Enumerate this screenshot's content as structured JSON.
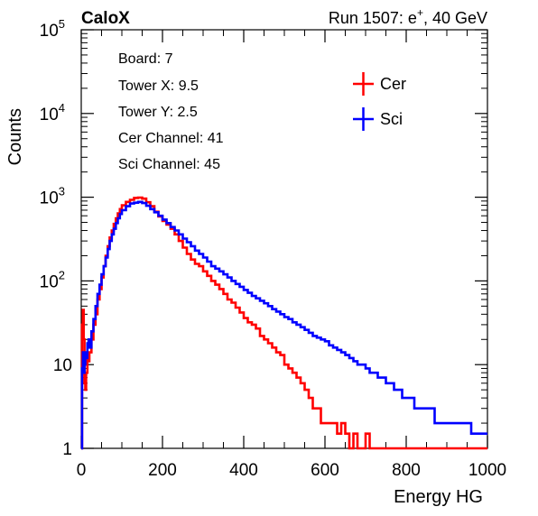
{
  "header": {
    "left": "CaloX",
    "right_prefix": "Run 1507: e",
    "right_sup": "+",
    "right_suffix": ", 40 GeV"
  },
  "info_box": {
    "lines": [
      "Board: 7",
      "Tower X: 9.5",
      "Tower Y: 2.5",
      "Cer Channel: 41",
      "Sci Channel: 45"
    ]
  },
  "legend": {
    "items": [
      {
        "label": "Cer",
        "color": "#ff0000"
      },
      {
        "label": "Sci",
        "color": "#0000ff"
      }
    ]
  },
  "chart_data": {
    "type": "line",
    "style": "step-histogram",
    "xlabel": "Energy HG",
    "ylabel": "Counts",
    "xlim": [
      0,
      1000
    ],
    "ylim": [
      1,
      100000
    ],
    "ylog": true,
    "x_ticks": [
      "0",
      "200",
      "400",
      "600",
      "800",
      "1000"
    ],
    "y_ticks": [
      {
        "base": "1",
        "exp": ""
      },
      {
        "base": "10",
        "exp": ""
      },
      {
        "base": "10",
        "exp": "2"
      },
      {
        "base": "10",
        "exp": "3"
      },
      {
        "base": "10",
        "exp": "4"
      },
      {
        "base": "10",
        "exp": "5"
      }
    ],
    "grid": false,
    "legend_position": "top-right",
    "series": [
      {
        "name": "Cer",
        "color": "#ff0000",
        "points": [
          [
            0,
            1
          ],
          [
            2,
            30
          ],
          [
            4,
            45
          ],
          [
            6,
            20
          ],
          [
            8,
            6
          ],
          [
            10,
            5
          ],
          [
            12,
            8
          ],
          [
            15,
            12
          ],
          [
            18,
            11
          ],
          [
            20,
            14
          ],
          [
            25,
            20
          ],
          [
            30,
            30
          ],
          [
            35,
            40
          ],
          [
            40,
            60
          ],
          [
            45,
            80
          ],
          [
            50,
            110
          ],
          [
            55,
            150
          ],
          [
            60,
            200
          ],
          [
            65,
            260
          ],
          [
            70,
            330
          ],
          [
            75,
            400
          ],
          [
            80,
            480
          ],
          [
            85,
            560
          ],
          [
            90,
            640
          ],
          [
            95,
            720
          ],
          [
            100,
            800
          ],
          [
            110,
            880
          ],
          [
            120,
            930
          ],
          [
            130,
            980
          ],
          [
            140,
            990
          ],
          [
            150,
            960
          ],
          [
            160,
            870
          ],
          [
            170,
            780
          ],
          [
            180,
            670
          ],
          [
            190,
            590
          ],
          [
            200,
            520
          ],
          [
            210,
            470
          ],
          [
            220,
            420
          ],
          [
            230,
            360
          ],
          [
            240,
            300
          ],
          [
            250,
            250
          ],
          [
            260,
            210
          ],
          [
            270,
            180
          ],
          [
            280,
            160
          ],
          [
            290,
            150
          ],
          [
            300,
            130
          ],
          [
            310,
            115
          ],
          [
            320,
            100
          ],
          [
            330,
            90
          ],
          [
            340,
            80
          ],
          [
            350,
            70
          ],
          [
            360,
            60
          ],
          [
            370,
            55
          ],
          [
            380,
            48
          ],
          [
            390,
            42
          ],
          [
            400,
            36
          ],
          [
            410,
            32
          ],
          [
            420,
            30
          ],
          [
            430,
            27
          ],
          [
            440,
            22
          ],
          [
            450,
            20
          ],
          [
            460,
            18
          ],
          [
            470,
            16
          ],
          [
            480,
            14
          ],
          [
            490,
            13
          ],
          [
            500,
            10
          ],
          [
            510,
            9
          ],
          [
            520,
            8
          ],
          [
            530,
            7
          ],
          [
            540,
            6
          ],
          [
            550,
            5
          ],
          [
            560,
            4
          ],
          [
            570,
            3
          ],
          [
            580,
            3
          ],
          [
            590,
            2
          ],
          [
            600,
            2
          ],
          [
            610,
            2
          ],
          [
            620,
            2
          ],
          [
            630,
            1.5
          ],
          [
            640,
            2
          ],
          [
            650,
            1.5
          ],
          [
            660,
            1
          ],
          [
            670,
            1.5
          ],
          [
            680,
            1
          ],
          [
            690,
            1
          ],
          [
            700,
            1.5
          ],
          [
            710,
            1
          ],
          [
            720,
            1
          ],
          [
            730,
            1
          ],
          [
            740,
            1
          ],
          [
            750,
            1
          ],
          [
            760,
            1
          ],
          [
            780,
            1
          ],
          [
            800,
            1
          ],
          [
            900,
            1
          ],
          [
            1000,
            1
          ]
        ]
      },
      {
        "name": "Sci",
        "color": "#0000ff",
        "points": [
          [
            0,
            1
          ],
          [
            2,
            9
          ],
          [
            4,
            14
          ],
          [
            6,
            8
          ],
          [
            8,
            10
          ],
          [
            10,
            14
          ],
          [
            12,
            12
          ],
          [
            15,
            18
          ],
          [
            18,
            20
          ],
          [
            20,
            16
          ],
          [
            25,
            25
          ],
          [
            30,
            35
          ],
          [
            35,
            50
          ],
          [
            40,
            70
          ],
          [
            45,
            90
          ],
          [
            50,
            120
          ],
          [
            55,
            150
          ],
          [
            60,
            190
          ],
          [
            65,
            240
          ],
          [
            70,
            300
          ],
          [
            75,
            360
          ],
          [
            80,
            420
          ],
          [
            85,
            490
          ],
          [
            90,
            560
          ],
          [
            95,
            630
          ],
          [
            100,
            700
          ],
          [
            110,
            780
          ],
          [
            120,
            840
          ],
          [
            130,
            860
          ],
          [
            140,
            880
          ],
          [
            150,
            850
          ],
          [
            160,
            790
          ],
          [
            170,
            720
          ],
          [
            180,
            660
          ],
          [
            190,
            600
          ],
          [
            200,
            540
          ],
          [
            210,
            490
          ],
          [
            220,
            440
          ],
          [
            230,
            400
          ],
          [
            240,
            360
          ],
          [
            250,
            320
          ],
          [
            260,
            290
          ],
          [
            270,
            260
          ],
          [
            280,
            230
          ],
          [
            290,
            210
          ],
          [
            300,
            190
          ],
          [
            310,
            170
          ],
          [
            320,
            150
          ],
          [
            330,
            140
          ],
          [
            340,
            130
          ],
          [
            350,
            120
          ],
          [
            360,
            110
          ],
          [
            370,
            100
          ],
          [
            380,
            92
          ],
          [
            390,
            85
          ],
          [
            400,
            78
          ],
          [
            410,
            72
          ],
          [
            420,
            66
          ],
          [
            430,
            62
          ],
          [
            440,
            58
          ],
          [
            450,
            54
          ],
          [
            460,
            50
          ],
          [
            470,
            46
          ],
          [
            480,
            43
          ],
          [
            490,
            40
          ],
          [
            500,
            37
          ],
          [
            510,
            35
          ],
          [
            520,
            32
          ],
          [
            530,
            30
          ],
          [
            540,
            28
          ],
          [
            550,
            26
          ],
          [
            560,
            24
          ],
          [
            570,
            22
          ],
          [
            580,
            21
          ],
          [
            590,
            20
          ],
          [
            600,
            19
          ],
          [
            610,
            17
          ],
          [
            620,
            16
          ],
          [
            630,
            15
          ],
          [
            640,
            14
          ],
          [
            650,
            13
          ],
          [
            660,
            12
          ],
          [
            670,
            11
          ],
          [
            680,
            10
          ],
          [
            690,
            10
          ],
          [
            700,
            9
          ],
          [
            710,
            8
          ],
          [
            720,
            8
          ],
          [
            730,
            7
          ],
          [
            740,
            7
          ],
          [
            750,
            6
          ],
          [
            760,
            6
          ],
          [
            770,
            5
          ],
          [
            780,
            5
          ],
          [
            790,
            4
          ],
          [
            800,
            4
          ],
          [
            810,
            4
          ],
          [
            820,
            3
          ],
          [
            830,
            3
          ],
          [
            840,
            3
          ],
          [
            850,
            3
          ],
          [
            860,
            3
          ],
          [
            870,
            2
          ],
          [
            880,
            2
          ],
          [
            890,
            2
          ],
          [
            900,
            2
          ],
          [
            910,
            2
          ],
          [
            920,
            2
          ],
          [
            930,
            2
          ],
          [
            940,
            2
          ],
          [
            950,
            2
          ],
          [
            960,
            1.5
          ],
          [
            970,
            1.5
          ],
          [
            980,
            1.5
          ],
          [
            990,
            1.5
          ],
          [
            1000,
            1.5
          ]
        ]
      }
    ]
  }
}
